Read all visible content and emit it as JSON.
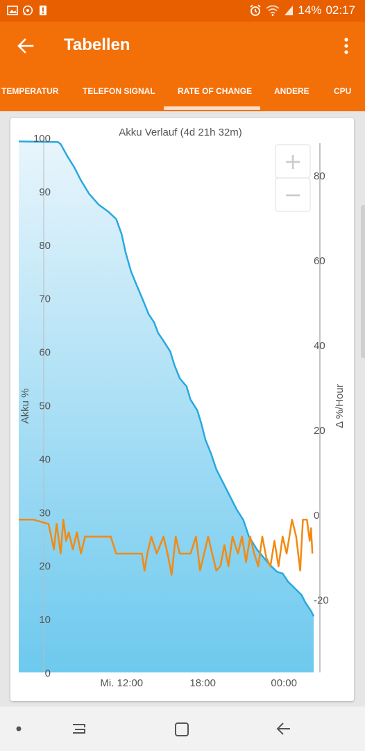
{
  "status_bar": {
    "icons_left": [
      "image-icon",
      "whatsapp-icon",
      "alert-icon"
    ],
    "icons_right": [
      "alarm-icon",
      "wifi-icon",
      "signal-icon"
    ],
    "battery": "14%",
    "time": "02:17"
  },
  "toolbar": {
    "title": "Tabellen",
    "back_icon": "arrow-left-icon",
    "menu_icon": "more-vert-icon"
  },
  "tabs": [
    {
      "label": "TEMPERATUR",
      "active": false
    },
    {
      "label": "TELEFON SIGNAL",
      "active": false
    },
    {
      "label": "RATE OF CHANGE",
      "active": true
    },
    {
      "label": "ANDERE",
      "active": false
    },
    {
      "label": "CPU",
      "active": false
    }
  ],
  "zoom": {
    "plus": "+",
    "minus": "−"
  },
  "colors": {
    "battery_line": "#29a8e0",
    "rate_line": "#f28a12",
    "fill_top": "#e8f5fc",
    "fill_bottom": "#6dc9ee"
  },
  "chart_data": {
    "type": "line",
    "title": "Akku Verlauf (4d 21h 32m)",
    "ylabel_left": "Akku %",
    "ylabel_right": "Δ %/Hour",
    "ylim_left": [
      0,
      100
    ],
    "ylim_right": [
      -37,
      89
    ],
    "yticks_left": [
      0,
      10,
      20,
      30,
      40,
      50,
      60,
      70,
      80,
      90,
      100
    ],
    "yticks_right": [
      -20,
      0,
      20,
      40,
      60,
      80
    ],
    "x_tick_labels": [
      "Mi. 12:00",
      "18:00",
      "00:00"
    ],
    "x_tick_hours": [
      12,
      18,
      24
    ],
    "xlim_hours": [
      4.4,
      26.4
    ],
    "series": [
      {
        "axis": "left",
        "x": [
          4.4,
          7.3,
          7.5,
          8.0,
          8.5,
          9.0,
          9.6,
          10.3,
          11.0,
          11.6,
          12.0,
          12.3,
          12.7,
          13.1,
          13.6,
          14.0,
          14.4,
          14.7,
          15.1,
          15.6,
          15.9,
          16.3,
          16.8,
          17.1,
          17.6,
          17.9,
          18.2,
          18.6,
          19.0,
          19.5,
          20.0,
          20.5,
          21.0,
          21.4,
          22.0,
          22.5,
          23.0,
          23.5,
          23.9,
          24.3,
          24.7,
          25.3,
          25.6,
          26.0,
          26.2
        ],
        "values": [
          99.3,
          99.2,
          98.8,
          96.5,
          94.5,
          92.0,
          89.5,
          87.5,
          86.2,
          84.8,
          82.0,
          78.5,
          75.0,
          72.5,
          69.5,
          67.0,
          65.5,
          63.5,
          62.0,
          60.0,
          57.5,
          55.0,
          53.5,
          51.0,
          49.0,
          46.5,
          43.5,
          41.0,
          38.0,
          35.5,
          33.0,
          30.5,
          28.5,
          25.5,
          23.0,
          21.5,
          20.0,
          18.8,
          18.5,
          17.0,
          16.0,
          14.5,
          13.0,
          11.5,
          10.5
        ]
      },
      {
        "axis": "right",
        "x": [
          4.4,
          5.5,
          6.6,
          7.0,
          7.2,
          7.5,
          7.7,
          7.9,
          8.1,
          8.4,
          8.7,
          9.0,
          9.3,
          9.6,
          10.0,
          10.5,
          11.2,
          11.6,
          11.8,
          12.4,
          13.0,
          13.5,
          13.7,
          13.9,
          14.2,
          14.6,
          15.1,
          15.4,
          15.7,
          16.0,
          16.3,
          16.7,
          17.1,
          17.5,
          17.8,
          18.1,
          18.4,
          18.7,
          19.0,
          19.3,
          19.6,
          19.9,
          20.2,
          20.6,
          20.9,
          21.2,
          21.5,
          21.8,
          22.1,
          22.4,
          22.7,
          23.0,
          23.3,
          23.6,
          23.9,
          24.2,
          24.6,
          24.9,
          25.2,
          25.4,
          25.7,
          25.9,
          26.0,
          26.1
        ],
        "values": [
          -1,
          -1,
          -2,
          -8,
          -2,
          -9,
          -1,
          -6,
          -4,
          -8,
          -4,
          -9,
          -5,
          -5,
          -5,
          -5,
          -5,
          -9,
          -9,
          -9,
          -9,
          -9,
          -13,
          -9,
          -5,
          -9,
          -5,
          -9,
          -14,
          -5,
          -9,
          -9,
          -9,
          -5,
          -13,
          -9,
          -5,
          -9,
          -13,
          -12,
          -7,
          -12,
          -5,
          -9,
          -5,
          -11,
          -5,
          -9,
          -12,
          -5,
          -10,
          -12,
          -6,
          -12,
          -5,
          -9,
          -1,
          -5,
          -13,
          -1,
          -1,
          -6,
          -3,
          -9
        ]
      }
    ]
  }
}
